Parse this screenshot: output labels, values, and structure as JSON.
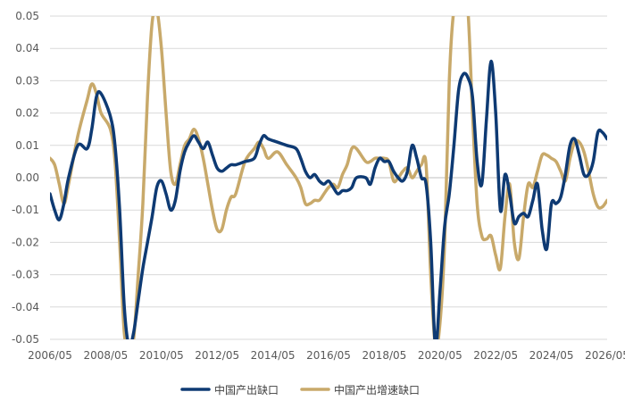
{
  "chart_data": {
    "type": "line",
    "title": "",
    "xlabel": "",
    "ylabel": "",
    "ylim": [
      -0.05,
      0.05
    ],
    "xlim": [
      "2006/05",
      "2026/05"
    ],
    "grid": "horizontal",
    "legend_position": "bottom",
    "y_ticks": [
      "0.05",
      "0.04",
      "0.03",
      "0.02",
      "0.01",
      "0.00",
      "-0.01",
      "-0.02",
      "-0.03",
      "-0.04",
      "-0.05"
    ],
    "x_ticks": [
      "2006/05",
      "2008/05",
      "2010/05",
      "2012/05",
      "2014/05",
      "2016/05",
      "2018/05",
      "2020/05",
      "2022/05",
      "2024/05",
      "2026/05"
    ],
    "series": [
      {
        "name": "中国产出缺口",
        "color": "#0e3a73",
        "points": [
          [
            "2006/05",
            -0.005
          ],
          [
            "2006/07",
            -0.01
          ],
          [
            "2006/09",
            -0.013
          ],
          [
            "2006/11",
            -0.008
          ],
          [
            "2007/01",
            0.0
          ],
          [
            "2007/05",
            0.01
          ],
          [
            "2007/09",
            0.009
          ],
          [
            "2007/11",
            0.015
          ],
          [
            "2008/01",
            0.025
          ],
          [
            "2008/03",
            0.026
          ],
          [
            "2008/07",
            0.019
          ],
          [
            "2008/09",
            0.01
          ],
          [
            "2008/11",
            -0.01
          ],
          [
            "2009/01",
            -0.04
          ],
          [
            "2009/03",
            -0.052
          ],
          [
            "2009/05",
            -0.048
          ],
          [
            "2009/07",
            -0.038
          ],
          [
            "2009/09",
            -0.028
          ],
          [
            "2009/11",
            -0.02
          ],
          [
            "2010/01",
            -0.012
          ],
          [
            "2010/03",
            -0.003
          ],
          [
            "2010/05",
            -0.001
          ],
          [
            "2010/07",
            -0.005
          ],
          [
            "2010/09",
            -0.01
          ],
          [
            "2010/11",
            -0.007
          ],
          [
            "2011/01",
            0.002
          ],
          [
            "2011/03",
            0.008
          ],
          [
            "2011/05",
            0.011
          ],
          [
            "2011/07",
            0.013
          ],
          [
            "2011/09",
            0.011
          ],
          [
            "2011/11",
            0.009
          ],
          [
            "2012/01",
            0.011
          ],
          [
            "2012/03",
            0.007
          ],
          [
            "2012/05",
            0.003
          ],
          [
            "2012/07",
            0.002
          ],
          [
            "2012/09",
            0.003
          ],
          [
            "2012/11",
            0.004
          ],
          [
            "2013/01",
            0.004
          ],
          [
            "2013/05",
            0.005
          ],
          [
            "2013/09",
            0.006
          ],
          [
            "2013/11",
            0.01
          ],
          [
            "2014/01",
            0.013
          ],
          [
            "2014/03",
            0.012
          ],
          [
            "2014/07",
            0.011
          ],
          [
            "2014/11",
            0.01
          ],
          [
            "2015/03",
            0.009
          ],
          [
            "2015/05",
            0.006
          ],
          [
            "2015/07",
            0.002
          ],
          [
            "2015/09",
            0.0
          ],
          [
            "2015/11",
            0.001
          ],
          [
            "2016/01",
            -0.001
          ],
          [
            "2016/03",
            -0.002
          ],
          [
            "2016/05",
            -0.001
          ],
          [
            "2016/07",
            -0.003
          ],
          [
            "2016/09",
            -0.005
          ],
          [
            "2016/11",
            -0.004
          ],
          [
            "2017/01",
            -0.004
          ],
          [
            "2017/03",
            -0.003
          ],
          [
            "2017/05",
            0.0
          ],
          [
            "2017/09",
            0.0
          ],
          [
            "2017/11",
            -0.002
          ],
          [
            "2018/01",
            0.003
          ],
          [
            "2018/03",
            0.006
          ],
          [
            "2018/05",
            0.005
          ],
          [
            "2018/07",
            0.005
          ],
          [
            "2018/09",
            0.002
          ],
          [
            "2018/11",
            0.0
          ],
          [
            "2019/01",
            -0.001
          ],
          [
            "2019/03",
            0.002
          ],
          [
            "2019/05",
            0.01
          ],
          [
            "2019/07",
            0.006
          ],
          [
            "2019/09",
            0.0
          ],
          [
            "2019/11",
            -0.002
          ],
          [
            "2020/01",
            -0.02
          ],
          [
            "2020/03",
            -0.052
          ],
          [
            "2020/05",
            -0.035
          ],
          [
            "2020/07",
            -0.015
          ],
          [
            "2020/09",
            -0.005
          ],
          [
            "2020/11",
            0.01
          ],
          [
            "2021/01",
            0.027
          ],
          [
            "2021/03",
            0.032
          ],
          [
            "2021/05",
            0.031
          ],
          [
            "2021/07",
            0.025
          ],
          [
            "2021/09",
            0.005
          ],
          [
            "2021/11",
            -0.002
          ],
          [
            "2022/01",
            0.018
          ],
          [
            "2022/03",
            0.036
          ],
          [
            "2022/05",
            0.02
          ],
          [
            "2022/07",
            -0.01
          ],
          [
            "2022/09",
            0.001
          ],
          [
            "2022/11",
            -0.005
          ],
          [
            "2023/01",
            -0.014
          ],
          [
            "2023/03",
            -0.012
          ],
          [
            "2023/05",
            -0.011
          ],
          [
            "2023/07",
            -0.012
          ],
          [
            "2023/09",
            -0.007
          ],
          [
            "2023/11",
            -0.002
          ],
          [
            "2024/01",
            -0.016
          ],
          [
            "2024/03",
            -0.022
          ],
          [
            "2024/05",
            -0.008
          ],
          [
            "2024/07",
            -0.008
          ],
          [
            "2024/09",
            -0.006
          ],
          [
            "2024/11",
            0.001
          ],
          [
            "2025/01",
            0.01
          ],
          [
            "2025/03",
            0.012
          ],
          [
            "2025/05",
            0.007
          ],
          [
            "2025/07",
            0.001
          ],
          [
            "2025/09",
            0.001
          ],
          [
            "2025/11",
            0.005
          ],
          [
            "2026/01",
            0.014
          ],
          [
            "2026/03",
            0.014
          ],
          [
            "2026/05",
            0.012
          ]
        ]
      },
      {
        "name": "中国产出增速缺口",
        "color": "#c8a96a",
        "points": [
          [
            "2006/05",
            0.006
          ],
          [
            "2006/07",
            0.004
          ],
          [
            "2006/09",
            -0.002
          ],
          [
            "2006/11",
            -0.008
          ],
          [
            "2007/01",
            -0.002
          ],
          [
            "2007/05",
            0.013
          ],
          [
            "2007/09",
            0.024
          ],
          [
            "2007/11",
            0.029
          ],
          [
            "2008/01",
            0.026
          ],
          [
            "2008/03",
            0.02
          ],
          [
            "2008/07",
            0.015
          ],
          [
            "2008/09",
            0.005
          ],
          [
            "2008/11",
            -0.02
          ],
          [
            "2009/01",
            -0.048
          ],
          [
            "2009/03",
            -0.052
          ],
          [
            "2009/05",
            -0.05
          ],
          [
            "2009/07",
            -0.03
          ],
          [
            "2009/09",
            -0.008
          ],
          [
            "2009/11",
            0.025
          ],
          [
            "2010/01",
            0.048
          ],
          [
            "2010/03",
            0.052
          ],
          [
            "2010/05",
            0.04
          ],
          [
            "2010/07",
            0.02
          ],
          [
            "2010/09",
            0.002
          ],
          [
            "2010/11",
            -0.002
          ],
          [
            "2011/01",
            0.004
          ],
          [
            "2011/03",
            0.01
          ],
          [
            "2011/05",
            0.012
          ],
          [
            "2011/07",
            0.015
          ],
          [
            "2011/09",
            0.012
          ],
          [
            "2011/11",
            0.006
          ],
          [
            "2012/01",
            -0.002
          ],
          [
            "2012/03",
            -0.01
          ],
          [
            "2012/05",
            -0.016
          ],
          [
            "2012/07",
            -0.016
          ],
          [
            "2012/09",
            -0.01
          ],
          [
            "2012/11",
            -0.006
          ],
          [
            "2013/01",
            -0.005
          ],
          [
            "2013/05",
            0.005
          ],
          [
            "2013/09",
            0.009
          ],
          [
            "2013/11",
            0.011
          ],
          [
            "2014/01",
            0.009
          ],
          [
            "2014/03",
            0.006
          ],
          [
            "2014/07",
            0.008
          ],
          [
            "2014/11",
            0.004
          ],
          [
            "2015/03",
            0.0
          ],
          [
            "2015/05",
            -0.003
          ],
          [
            "2015/07",
            -0.008
          ],
          [
            "2015/09",
            -0.008
          ],
          [
            "2015/11",
            -0.007
          ],
          [
            "2016/01",
            -0.007
          ],
          [
            "2016/03",
            -0.005
          ],
          [
            "2016/05",
            -0.003
          ],
          [
            "2016/07",
            -0.002
          ],
          [
            "2016/09",
            -0.003
          ],
          [
            "2016/11",
            0.001
          ],
          [
            "2017/01",
            0.004
          ],
          [
            "2017/03",
            0.009
          ],
          [
            "2017/05",
            0.009
          ],
          [
            "2017/09",
            0.005
          ],
          [
            "2017/11",
            0.005
          ],
          [
            "2018/01",
            0.006
          ],
          [
            "2018/03",
            0.006
          ],
          [
            "2018/05",
            0.006
          ],
          [
            "2018/07",
            0.005
          ],
          [
            "2018/09",
            -0.001
          ],
          [
            "2018/11",
            0.0
          ],
          [
            "2019/01",
            0.002
          ],
          [
            "2019/03",
            0.003
          ],
          [
            "2019/05",
            0.0
          ],
          [
            "2019/07",
            0.002
          ],
          [
            "2019/09",
            0.004
          ],
          [
            "2019/11",
            0.004
          ],
          [
            "2020/01",
            -0.03
          ],
          [
            "2020/03",
            -0.052
          ],
          [
            "2020/05",
            -0.045
          ],
          [
            "2020/07",
            -0.02
          ],
          [
            "2020/09",
            0.03
          ],
          [
            "2020/11",
            0.052
          ],
          [
            "2021/01",
            0.052
          ],
          [
            "2021/03",
            0.052
          ],
          [
            "2021/05",
            0.052
          ],
          [
            "2021/07",
            0.02
          ],
          [
            "2021/09",
            -0.008
          ],
          [
            "2021/11",
            -0.018
          ],
          [
            "2022/01",
            -0.019
          ],
          [
            "2022/03",
            -0.018
          ],
          [
            "2022/05",
            -0.024
          ],
          [
            "2022/07",
            -0.028
          ],
          [
            "2022/09",
            -0.012
          ],
          [
            "2022/11",
            -0.002
          ],
          [
            "2023/01",
            -0.02
          ],
          [
            "2023/03",
            -0.025
          ],
          [
            "2023/05",
            -0.012
          ],
          [
            "2023/07",
            -0.002
          ],
          [
            "2023/09",
            -0.003
          ],
          [
            "2023/11",
            0.002
          ],
          [
            "2024/01",
            0.007
          ],
          [
            "2024/03",
            0.007
          ],
          [
            "2024/05",
            0.006
          ],
          [
            "2024/07",
            0.005
          ],
          [
            "2024/09",
            0.002
          ],
          [
            "2024/11",
            -0.001
          ],
          [
            "2025/01",
            0.006
          ],
          [
            "2025/03",
            0.011
          ],
          [
            "2025/05",
            0.011
          ],
          [
            "2025/07",
            0.008
          ],
          [
            "2025/09",
            0.002
          ],
          [
            "2025/11",
            -0.005
          ],
          [
            "2026/01",
            -0.009
          ],
          [
            "2026/03",
            -0.009
          ],
          [
            "2026/05",
            -0.007
          ]
        ]
      }
    ]
  }
}
